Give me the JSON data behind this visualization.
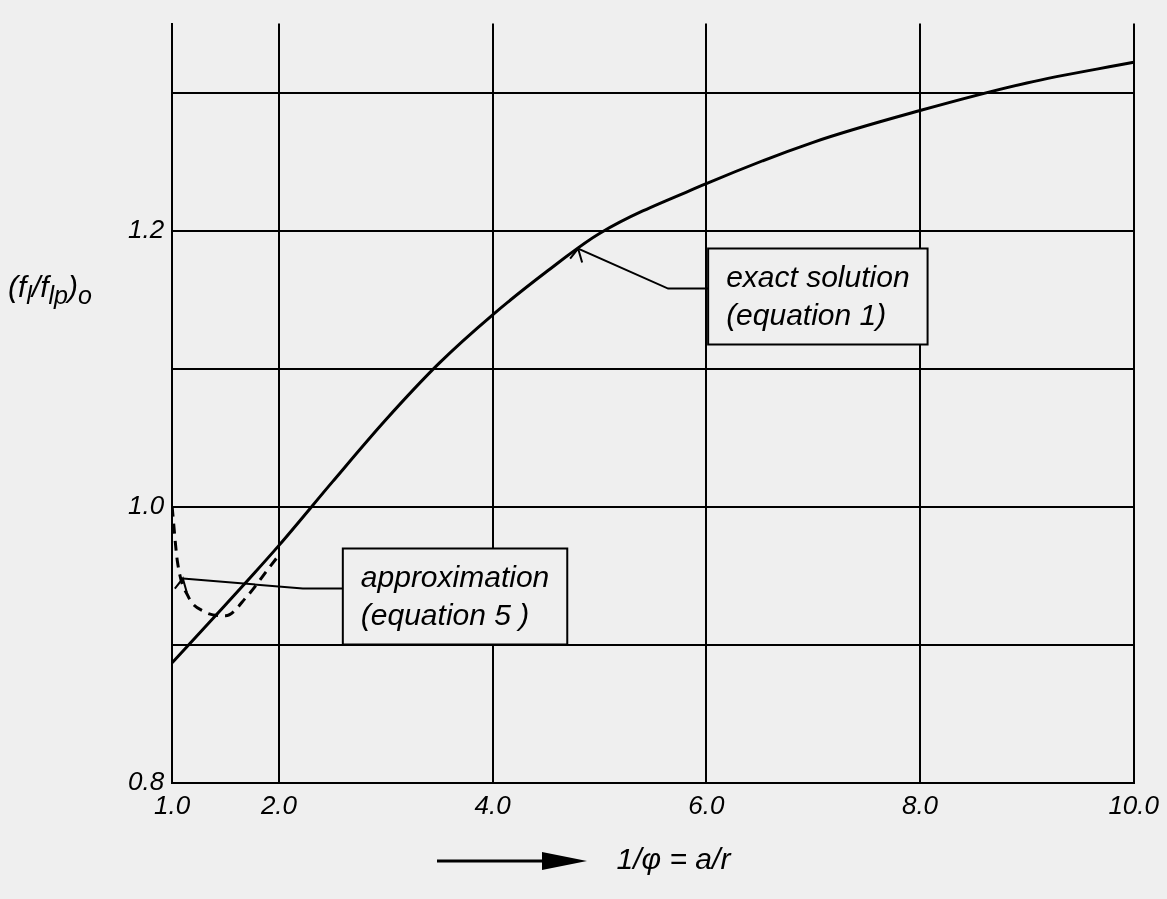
{
  "chart_data": {
    "type": "line",
    "xlabel": "1/φ = a/r",
    "ylabel": "(f$_{l}$/f$_{lp}$)$_{o}$",
    "x": [
      1.0,
      1.5,
      2.0,
      2.5,
      3.0,
      3.5,
      4.0,
      4.5,
      5.0,
      6.0,
      7.0,
      8.0,
      9.0,
      10.0
    ],
    "series": [
      {
        "color": "#000000",
        "line_style": "solid",
        "values": [
          0.887,
          0.929,
          0.972,
          1.018,
          1.063,
          1.104,
          1.139,
          1.17,
          1.198,
          1.234,
          1.264,
          1.287,
          1.307,
          1.322
        ]
      },
      {
        "color": "#000000",
        "line_style": "dashed",
        "x": [
          1.0,
          1.05,
          1.15,
          1.3,
          1.5,
          1.7,
          1.9,
          2.0
        ],
        "values": [
          1.0,
          0.96,
          0.935,
          0.924,
          0.921,
          0.935,
          0.955,
          0.965
        ]
      }
    ],
    "xlim": [
      1.0,
      10.0
    ],
    "ylim": [
      0.8,
      1.35
    ],
    "xticks": [
      {
        "value": 1,
        "label": "1.0"
      },
      {
        "value": 2,
        "label": "2.0"
      },
      {
        "value": 4,
        "label": "4.0"
      },
      {
        "value": 6,
        "label": "6.0"
      },
      {
        "value": 8,
        "label": "8.0"
      },
      {
        "value": 10,
        "label": "10.0"
      }
    ],
    "yticks": [
      {
        "value": 0.8,
        "label": "0.8"
      },
      {
        "value": 0.9,
        "label": null
      },
      {
        "value": 1.0,
        "label": "1.0"
      },
      {
        "value": 1.1,
        "label": null
      },
      {
        "value": 1.2,
        "label": "1.2"
      },
      {
        "value": 1.3,
        "label": null
      }
    ],
    "annotations": [
      {
        "text": "exact solution\n(equation 1)",
        "x": 4.8,
        "y": 1.187
      },
      {
        "text": "approximation\n(equation 5 )",
        "x": 1.1,
        "y": 0.948
      }
    ],
    "grid": true,
    "legend": false,
    "marker": "none"
  }
}
